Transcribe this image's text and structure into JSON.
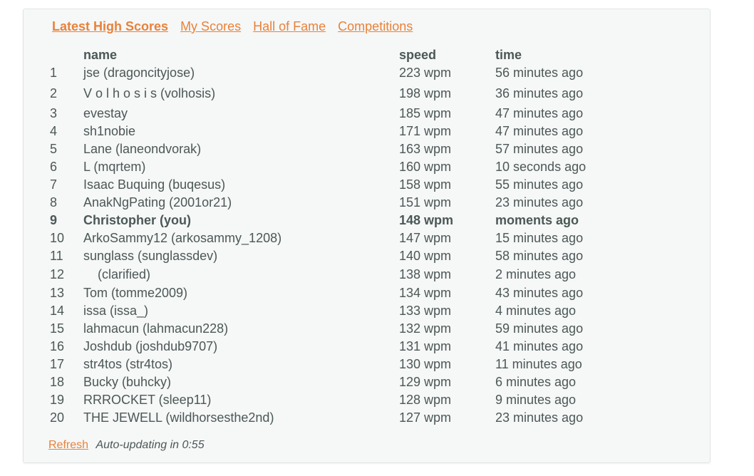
{
  "tabs": [
    {
      "label": "Latest High Scores"
    },
    {
      "label": "My Scores"
    },
    {
      "label": "Hall of Fame"
    },
    {
      "label": "Competitions"
    }
  ],
  "columns": {
    "name": "name",
    "speed": "speed",
    "time": "time"
  },
  "rows": [
    {
      "rank": "1",
      "name": "jse (dragoncityjose)",
      "speed": "223 wpm",
      "time": "56 minutes ago"
    },
    {
      "rank": "2",
      "name": "V o l h o s i s (volhosis)",
      "speed": "198 wpm",
      "time": "36 minutes ago"
    },
    {
      "rank": "3",
      "name": "evestay",
      "speed": "185 wpm",
      "time": "47 minutes ago"
    },
    {
      "rank": "4",
      "name": "sh1nobie",
      "speed": "171 wpm",
      "time": "47 minutes ago"
    },
    {
      "rank": "5",
      "name": "Lane (laneondvorak)",
      "speed": "163 wpm",
      "time": "57 minutes ago"
    },
    {
      "rank": "6",
      "name": "L (mqrtem)",
      "speed": "160 wpm",
      "time": "10 seconds ago"
    },
    {
      "rank": "7",
      "name": "Isaac Buquing (buqesus)",
      "speed": "158 wpm",
      "time": "55 minutes ago"
    },
    {
      "rank": "8",
      "name": "AnakNgPating (2001or21)",
      "speed": "151 wpm",
      "time": "23 minutes ago"
    },
    {
      "rank": "9",
      "name": "Christopher (you)",
      "speed": "148 wpm",
      "time": "moments ago"
    },
    {
      "rank": "10",
      "name": "ArkoSammy12 (arkosammy_1208)",
      "speed": "147 wpm",
      "time": "15 minutes ago"
    },
    {
      "rank": "11",
      "name": "sunglass (sunglassdev)",
      "speed": "140 wpm",
      "time": "58 minutes ago"
    },
    {
      "rank": "12",
      "name": "    (clarified)",
      "speed": "138 wpm",
      "time": "2 minutes ago"
    },
    {
      "rank": "13",
      "name": "Tom (tomme2009)",
      "speed": "134 wpm",
      "time": "43 minutes ago"
    },
    {
      "rank": "14",
      "name": "issa (issa_)",
      "speed": "133 wpm",
      "time": "4 minutes ago"
    },
    {
      "rank": "15",
      "name": "lahmacun (lahmacun228)",
      "speed": "132 wpm",
      "time": "59 minutes ago"
    },
    {
      "rank": "16",
      "name": "Joshdub (joshdub9707)",
      "speed": "131 wpm",
      "time": "41 minutes ago"
    },
    {
      "rank": "17",
      "name": "str4tos (str4tos)",
      "speed": "130 wpm",
      "time": "11 minutes ago"
    },
    {
      "rank": "18",
      "name": "Bucky (buhcky)",
      "speed": "129 wpm",
      "time": "6 minutes ago"
    },
    {
      "rank": "19",
      "name": "RRROCKET (sleep11)",
      "speed": "128 wpm",
      "time": "9 minutes ago"
    },
    {
      "rank": "20",
      "name": "THE JEWELL (wildhorsesthe2nd)",
      "speed": "127 wpm",
      "time": "23 minutes ago"
    }
  ],
  "footer": {
    "refresh": "Refresh",
    "auto_updating": "Auto-updating in 0:55"
  },
  "colors": {
    "accent": "#e8823a",
    "text": "#4b5856",
    "panel_bg": "#f6f7f7"
  }
}
